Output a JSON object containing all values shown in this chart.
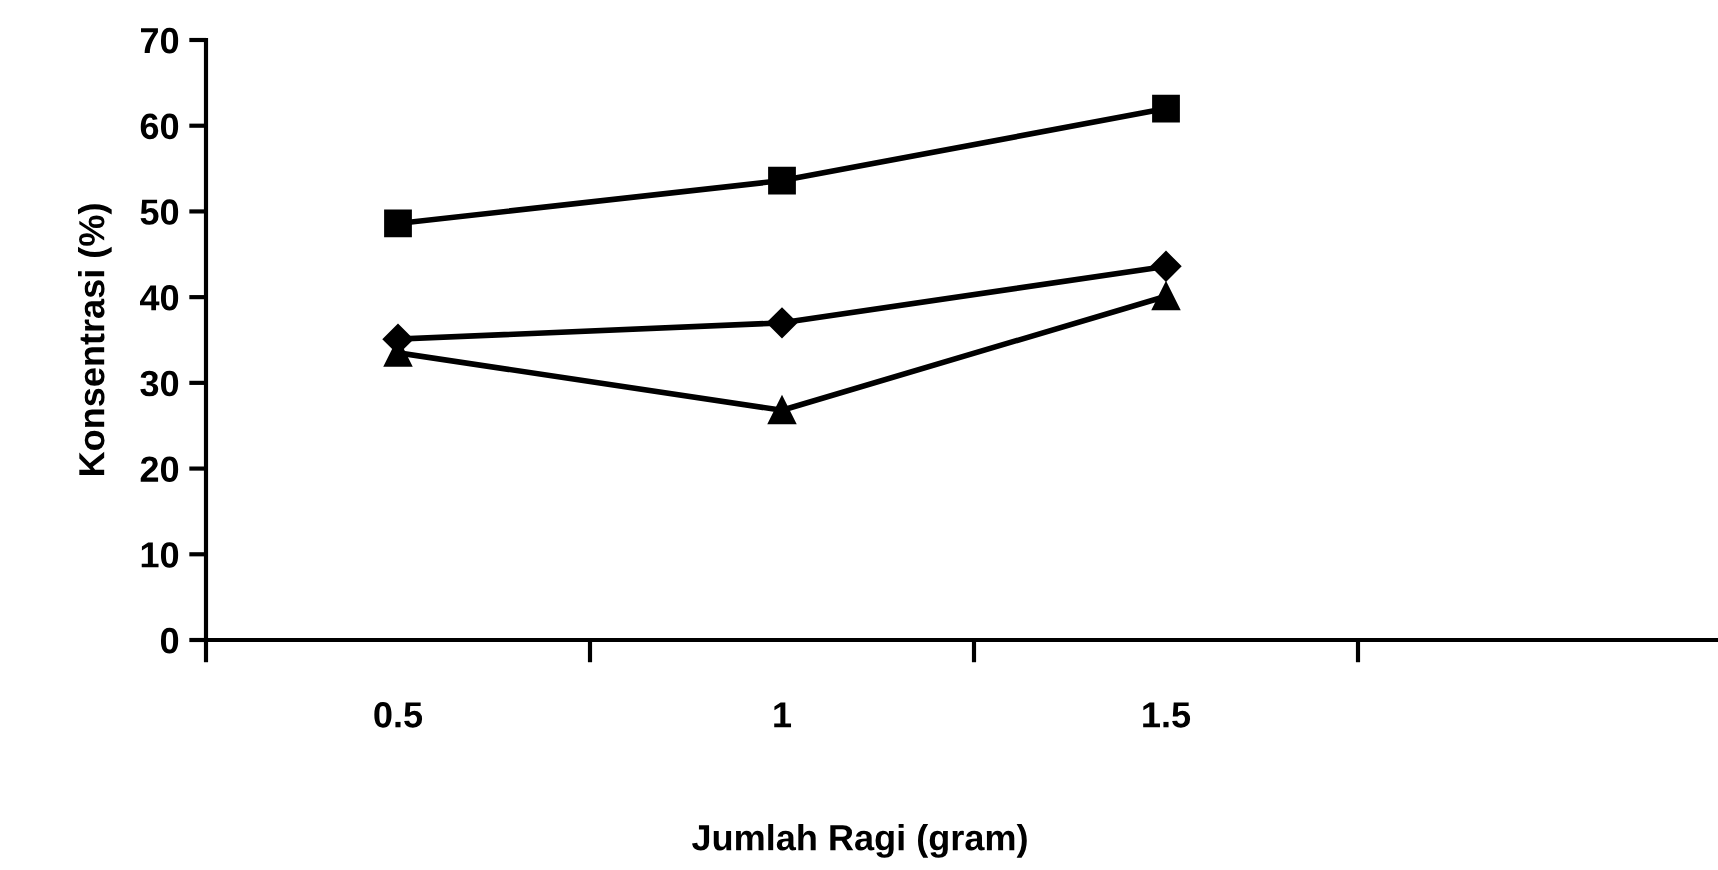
{
  "chart_data": {
    "type": "line",
    "xlabel": "Jumlah Ragi (gram)",
    "ylabel": "Konsentrasi (%)",
    "categories": [
      "0.5",
      "1",
      "1.5",
      null
    ],
    "series": [
      {
        "color": "#000000",
        "marker": "square",
        "values": [
          48.6,
          53.6,
          62.0,
          null
        ]
      },
      {
        "color": "#000000",
        "marker": "diamond",
        "values": [
          35.1,
          37.0,
          43.6,
          null
        ]
      },
      {
        "color": "#000000",
        "marker": "triangle",
        "values": [
          33.5,
          26.8,
          40.1,
          null
        ]
      }
    ],
    "ylim": [
      0,
      70
    ],
    "yticks": [
      0,
      10,
      20,
      30,
      40,
      50,
      60,
      70
    ],
    "grid": false,
    "legend": false,
    "line_style": "solid"
  }
}
